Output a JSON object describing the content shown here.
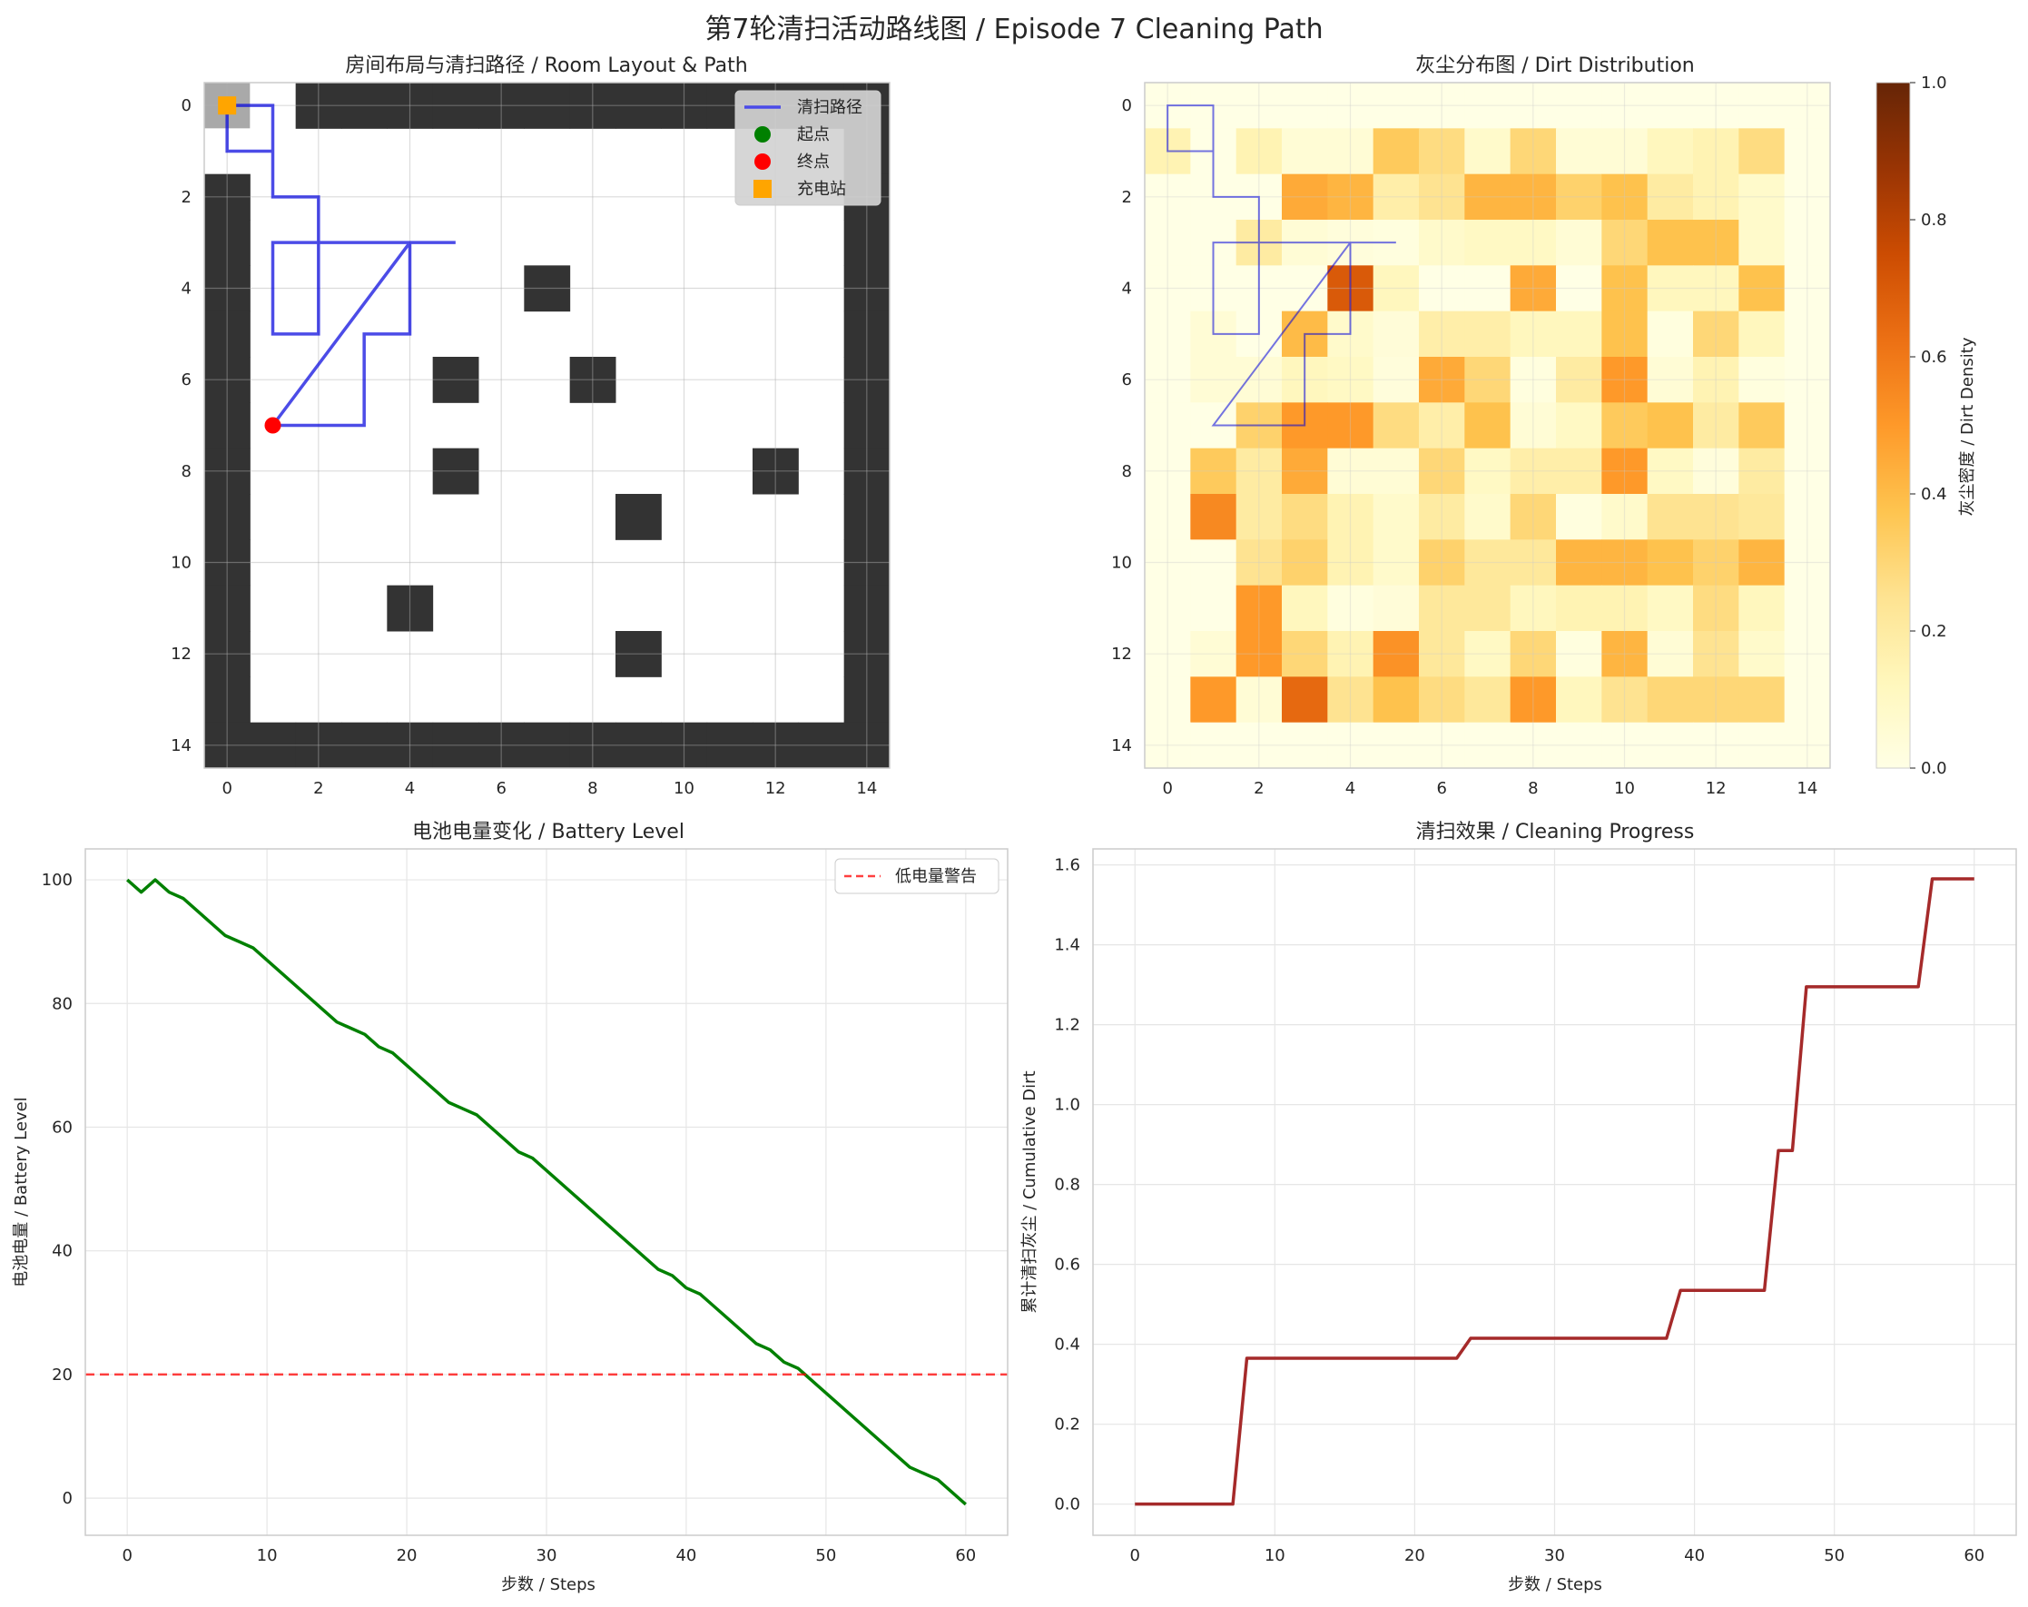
{
  "figure": {
    "title": "第7轮清扫活动路线图 / Episode 7 Cleaning Path"
  },
  "chart_data": [
    {
      "id": "room",
      "type": "heatmap",
      "title": "房间布局与清扫路径 / Room Layout & Path",
      "grid_size": [
        15,
        15
      ],
      "xlim": [
        -0.5,
        14.5
      ],
      "ylim": [
        14.5,
        -0.5
      ],
      "xticks": [
        0,
        2,
        4,
        6,
        8,
        10,
        12,
        14
      ],
      "yticks": [
        0,
        2,
        4,
        6,
        8,
        10,
        12,
        14
      ],
      "grid": true,
      "wall_color": "#333333",
      "station_cell_color": "#a9a9a9",
      "obstacles": [
        [
          2,
          0
        ],
        [
          3,
          0
        ],
        [
          4,
          0
        ],
        [
          5,
          0
        ],
        [
          6,
          0
        ],
        [
          7,
          0
        ],
        [
          8,
          0
        ],
        [
          9,
          0
        ],
        [
          10,
          0
        ],
        [
          11,
          0
        ],
        [
          12,
          0
        ],
        [
          13,
          0
        ],
        [
          14,
          0
        ],
        [
          14,
          1
        ],
        [
          14,
          2
        ],
        [
          14,
          3
        ],
        [
          14,
          4
        ],
        [
          14,
          5
        ],
        [
          14,
          6
        ],
        [
          14,
          7
        ],
        [
          14,
          8
        ],
        [
          14,
          9
        ],
        [
          14,
          10
        ],
        [
          14,
          11
        ],
        [
          14,
          12
        ],
        [
          14,
          13
        ],
        [
          14,
          14
        ],
        [
          0,
          2
        ],
        [
          0,
          3
        ],
        [
          0,
          4
        ],
        [
          0,
          5
        ],
        [
          0,
          6
        ],
        [
          0,
          7
        ],
        [
          0,
          8
        ],
        [
          0,
          9
        ],
        [
          0,
          10
        ],
        [
          0,
          11
        ],
        [
          0,
          12
        ],
        [
          0,
          13
        ],
        [
          0,
          14
        ],
        [
          1,
          14
        ],
        [
          2,
          14
        ],
        [
          3,
          14
        ],
        [
          4,
          14
        ],
        [
          5,
          14
        ],
        [
          6,
          14
        ],
        [
          7,
          14
        ],
        [
          8,
          14
        ],
        [
          9,
          14
        ],
        [
          10,
          14
        ],
        [
          11,
          14
        ],
        [
          12,
          14
        ],
        [
          13,
          14
        ],
        [
          7,
          4
        ],
        [
          5,
          6
        ],
        [
          8,
          6
        ],
        [
          5,
          8
        ],
        [
          12,
          8
        ],
        [
          9,
          9
        ],
        [
          4,
          11
        ],
        [
          9,
          12
        ]
      ],
      "charging_station": [
        0,
        0
      ],
      "path": {
        "name": "清扫路径",
        "color": "#0000dd",
        "points": [
          [
            0,
            0
          ],
          [
            1,
            0
          ],
          [
            1,
            1
          ],
          [
            0,
            1
          ],
          [
            0,
            0
          ],
          [
            1,
            0
          ],
          [
            1,
            2
          ],
          [
            2,
            2
          ],
          [
            2,
            3
          ],
          [
            1,
            3
          ],
          [
            1,
            5
          ],
          [
            2,
            5
          ],
          [
            2,
            3
          ],
          [
            4,
            3
          ],
          [
            4,
            5
          ],
          [
            3,
            5
          ],
          [
            3,
            7
          ],
          [
            1,
            7
          ],
          [
            4,
            3
          ],
          [
            5,
            3
          ]
        ]
      },
      "start_point": [
        0,
        0
      ],
      "end_point": [
        1,
        7
      ],
      "legend": {
        "position": "upper right",
        "entries": [
          {
            "label": "清扫路径",
            "marker": "line",
            "color": "#4a4ae8"
          },
          {
            "label": "起点",
            "marker": "circle",
            "color": "#008000"
          },
          {
            "label": "终点",
            "marker": "circle",
            "color": "#ff0000"
          },
          {
            "label": "充电站",
            "marker": "square",
            "color": "#ffa500"
          }
        ]
      }
    },
    {
      "id": "dirt",
      "type": "heatmap",
      "title": "灰尘分布图 / Dirt Distribution",
      "colormap": "YlOrBr",
      "colorbar_label": "灰尘密度 / Dirt Density",
      "colorbar_ticks": [
        0.0,
        0.2,
        0.4,
        0.6,
        0.8,
        1.0
      ],
      "vmin": 0.0,
      "vmax": 1.0,
      "xlim": [
        -0.5,
        14.5
      ],
      "ylim": [
        14.5,
        -0.5
      ],
      "xticks": [
        0,
        2,
        4,
        6,
        8,
        10,
        12,
        14
      ],
      "yticks": [
        0,
        2,
        4,
        6,
        8,
        10,
        12,
        14
      ],
      "values": [
        [
          0,
          0,
          0,
          0,
          0,
          0,
          0,
          0,
          0,
          0,
          0,
          0,
          0,
          0,
          0
        ],
        [
          0.15,
          0,
          0.15,
          0.05,
          0.05,
          0.35,
          0.28,
          0.08,
          0.3,
          0.05,
          0.05,
          0.12,
          0.15,
          0.28,
          0
        ],
        [
          0,
          0,
          0,
          0.45,
          0.42,
          0.18,
          0.25,
          0.42,
          0.42,
          0.32,
          0.38,
          0.2,
          0.15,
          0.08,
          0
        ],
        [
          0,
          0,
          0.2,
          0.05,
          0.03,
          0.02,
          0.08,
          0.1,
          0.1,
          0.05,
          0.3,
          0.38,
          0.38,
          0.08,
          0
        ],
        [
          0,
          0,
          0,
          0,
          0.7,
          0.12,
          0,
          0,
          0.45,
          0,
          0.38,
          0.12,
          0.12,
          0.38,
          0
        ],
        [
          0,
          0.05,
          0,
          0.4,
          0.08,
          0.04,
          0.18,
          0.18,
          0.12,
          0.12,
          0.38,
          0.02,
          0.3,
          0.12,
          0
        ],
        [
          0,
          0.05,
          0.05,
          0.12,
          0.1,
          0.03,
          0.45,
          0.3,
          0.02,
          0.2,
          0.5,
          0.05,
          0.15,
          0.02,
          0
        ],
        [
          0,
          0,
          0.32,
          0.5,
          0.5,
          0.28,
          0.18,
          0.38,
          0.05,
          0.1,
          0.35,
          0.38,
          0.2,
          0.35,
          0
        ],
        [
          0,
          0.35,
          0.2,
          0.45,
          0.05,
          0.05,
          0.3,
          0.1,
          0.18,
          0.18,
          0.5,
          0.1,
          0.03,
          0.2,
          0
        ],
        [
          0,
          0.55,
          0.2,
          0.28,
          0.15,
          0.08,
          0.2,
          0.08,
          0.3,
          0.02,
          0.08,
          0.25,
          0.25,
          0.22,
          0
        ],
        [
          0,
          0,
          0.25,
          0.32,
          0.15,
          0.08,
          0.32,
          0.22,
          0.22,
          0.42,
          0.42,
          0.38,
          0.32,
          0.42,
          0
        ],
        [
          0,
          0,
          0.5,
          0.12,
          0.02,
          0.04,
          0.22,
          0.22,
          0.12,
          0.15,
          0.15,
          0.1,
          0.28,
          0.12,
          0
        ],
        [
          0,
          0.05,
          0.5,
          0.3,
          0.15,
          0.52,
          0.22,
          0.1,
          0.3,
          0.02,
          0.42,
          0.05,
          0.25,
          0.08,
          0
        ],
        [
          0,
          0.5,
          0.05,
          0.65,
          0.25,
          0.38,
          0.28,
          0.22,
          0.5,
          0.12,
          0.25,
          0.3,
          0.3,
          0.3,
          0
        ],
        [
          0,
          0,
          0,
          0,
          0,
          0,
          0,
          0,
          0,
          0,
          0,
          0,
          0,
          0,
          0
        ]
      ],
      "path": {
        "color": "#0000dd",
        "points": [
          [
            0,
            0
          ],
          [
            1,
            0
          ],
          [
            1,
            1
          ],
          [
            0,
            1
          ],
          [
            0,
            0
          ],
          [
            1,
            0
          ],
          [
            1,
            2
          ],
          [
            2,
            2
          ],
          [
            2,
            3
          ],
          [
            1,
            3
          ],
          [
            1,
            5
          ],
          [
            2,
            5
          ],
          [
            2,
            3
          ],
          [
            4,
            3
          ],
          [
            4,
            5
          ],
          [
            3,
            5
          ],
          [
            3,
            7
          ],
          [
            1,
            7
          ],
          [
            4,
            3
          ],
          [
            5,
            3
          ]
        ]
      }
    },
    {
      "id": "battery",
      "type": "line",
      "title": "电池电量变化 / Battery Level",
      "xlabel": "步数 / Steps",
      "ylabel": "电池电量 / Battery Level",
      "xlim": [
        -3,
        63
      ],
      "ylim": [
        -6,
        105
      ],
      "xticks": [
        0,
        10,
        20,
        30,
        40,
        50,
        60
      ],
      "yticks": [
        0,
        20,
        40,
        60,
        80,
        100
      ],
      "grid": true,
      "series": [
        {
          "color": "#008000",
          "x": [
            0,
            1,
            2,
            3,
            4,
            5,
            6,
            7,
            8,
            9,
            10,
            11,
            12,
            13,
            14,
            15,
            16,
            17,
            18,
            19,
            20,
            21,
            22,
            23,
            24,
            25,
            26,
            27,
            28,
            29,
            30,
            31,
            32,
            33,
            34,
            35,
            36,
            37,
            38,
            39,
            40,
            41,
            42,
            43,
            44,
            45,
            46,
            47,
            48,
            49,
            50,
            51,
            52,
            53,
            54,
            55,
            56,
            57,
            58,
            59,
            60
          ],
          "values": [
            100,
            98,
            100,
            98,
            97,
            95,
            93,
            91,
            90,
            89,
            87,
            85,
            83,
            81,
            79,
            77,
            76,
            75,
            73,
            72,
            70,
            68,
            66,
            64,
            63,
            62,
            60,
            58,
            56,
            55,
            53,
            51,
            49,
            47,
            45,
            43,
            41,
            39,
            37,
            36,
            34,
            33,
            31,
            29,
            27,
            25,
            24,
            22,
            21,
            19,
            17,
            15,
            13,
            11,
            9,
            7,
            5,
            4,
            3,
            1,
            -1
          ]
        }
      ],
      "reference_line": {
        "label": "低电量警告",
        "y": 20,
        "color": "#ff0000",
        "style": "dashed"
      },
      "legend": {
        "position": "upper right"
      }
    },
    {
      "id": "progress",
      "type": "line",
      "title": "清扫效果 / Cleaning Progress",
      "xlabel": "步数 / Steps",
      "ylabel": "累计清扫灰尘 / Cumulative Dirt",
      "xlim": [
        -3,
        63
      ],
      "ylim": [
        -0.078,
        1.64
      ],
      "xticks": [
        0,
        10,
        20,
        30,
        40,
        50,
        60
      ],
      "yticks": [
        0.0,
        0.2,
        0.4,
        0.6,
        0.8,
        1.0,
        1.2,
        1.4,
        1.6
      ],
      "grid": true,
      "series": [
        {
          "color": "#a52a2a",
          "x": [
            0,
            7,
            8,
            23,
            24,
            38,
            39,
            45,
            46,
            47,
            48,
            56,
            57,
            60
          ],
          "values": [
            0.0,
            0.0,
            0.365,
            0.365,
            0.415,
            0.415,
            0.535,
            0.535,
            0.885,
            0.885,
            1.295,
            1.295,
            1.565,
            1.565
          ]
        }
      ]
    }
  ]
}
